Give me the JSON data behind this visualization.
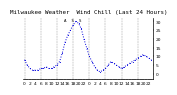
{
  "title": "Milwaukee Weather  Wind Chill (Last 24 Hours)",
  "y_values": [
    8,
    5,
    3,
    2,
    2,
    2,
    3,
    3,
    4,
    3,
    3,
    4,
    5,
    7,
    12,
    18,
    22,
    25,
    28,
    30,
    29,
    26,
    20,
    15,
    10,
    7,
    4,
    2,
    1,
    2,
    3,
    5,
    7,
    6,
    5,
    4,
    3,
    4,
    5,
    6,
    7,
    8,
    9,
    10,
    11,
    10,
    9,
    8
  ],
  "ylim": [
    -3,
    32
  ],
  "ytick_values": [
    0,
    5,
    10,
    15,
    20,
    25,
    30
  ],
  "ytick_labels": [
    "0",
    "5",
    "10",
    "15",
    "20",
    "25",
    "30"
  ],
  "line_color": "#0000dd",
  "bg_color": "#ffffff",
  "grid_color": "#999999",
  "title_fontsize": 4.2,
  "tick_fontsize": 3.2,
  "vgrid_every": 6,
  "annotation_text": "A  S  S",
  "annotation_xi": 18,
  "annotation_yi": 29
}
